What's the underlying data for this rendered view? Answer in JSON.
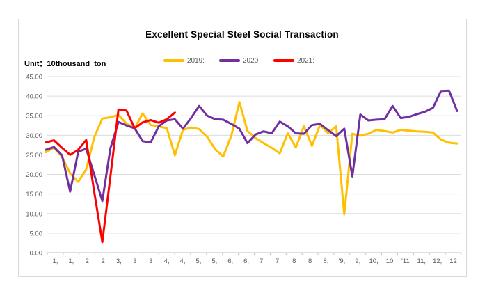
{
  "title": "Excellent Special Steel Social Transaction",
  "unit_label": "Unit：10thousand  ton",
  "legend": {
    "items": [
      {
        "label": "2019:",
        "color": "#FFC000"
      },
      {
        "label": "2020",
        "color": "#7030A0"
      },
      {
        "label": "2021:",
        "color": "#FF0000"
      }
    ]
  },
  "colors": {
    "background": "#FFFFFF",
    "frame": "#D9D9D9",
    "gridline": "#DCDCDC",
    "axis": "#BFBFBF",
    "axis_label": "#595959",
    "legend_text": "#595959"
  },
  "chart_data": {
    "type": "line",
    "title": "Excellent Special Steel Social Transaction",
    "unit": "10thousand ton",
    "legend_position": "top",
    "grid": "horizontal",
    "ylim": [
      0,
      45
    ],
    "y_tick_step": 5,
    "y_tick_labels": [
      "0.00",
      "5.00",
      "10.00",
      "15.00",
      "20.00",
      "25.00",
      "30.00",
      "35.00",
      "40.00",
      "45.00"
    ],
    "x_labels": [
      "1,",
      "1,",
      "2",
      "2",
      "3,",
      "3",
      "3",
      "4,",
      "4,",
      "5,",
      "5,",
      "6,",
      "6,",
      "7,",
      "7,",
      "8",
      "8",
      "8,",
      "'9,",
      "9,",
      "10,",
      "10",
      "'11",
      "11,",
      "12,",
      "12"
    ],
    "points_per_label": 2,
    "n_points": 52,
    "series": [
      {
        "name": "2019:",
        "color": "#FFC000",
        "values": [
          25.7,
          26.8,
          24.5,
          20.3,
          18.1,
          21.3,
          29.5,
          34.3,
          34.6,
          35.2,
          33.0,
          31.8,
          35.6,
          32.6,
          32.3,
          31.8,
          24.9,
          31.4,
          32.0,
          31.6,
          29.6,
          26.4,
          24.6,
          29.9,
          38.5,
          31.1,
          29.3,
          28.0,
          26.8,
          25.4,
          30.5,
          26.9,
          32.3,
          27.3,
          32.7,
          30.5,
          32.3,
          9.8,
          30.4,
          29.9,
          30.4,
          31.4,
          31.1,
          30.7,
          31.4,
          31.2,
          31.0,
          30.9,
          30.7,
          28.9,
          28.1,
          27.9
        ]
      },
      {
        "name": "2020",
        "color": "#7030A0",
        "values": [
          26.3,
          27.0,
          24.9,
          15.6,
          25.8,
          26.6,
          19.9,
          13.2,
          26.7,
          33.4,
          32.5,
          31.8,
          28.5,
          28.2,
          32.3,
          33.8,
          34.1,
          31.7,
          34.4,
          37.5,
          35.0,
          34.1,
          34.0,
          32.9,
          31.7,
          28.0,
          30.2,
          31.0,
          30.5,
          33.5,
          32.3,
          30.5,
          30.4,
          32.6,
          32.9,
          31.3,
          29.8,
          31.7,
          19.5,
          35.3,
          33.8,
          34.0,
          34.1,
          37.5,
          34.4,
          34.7,
          35.4,
          36.0,
          37.0,
          41.3,
          41.4,
          36.2
        ]
      },
      {
        "name": "2021:",
        "color": "#FF0000",
        "values": [
          28.2,
          28.7,
          26.8,
          25.0,
          26.3,
          28.8,
          15.5,
          2.7,
          19.5,
          36.6,
          36.3,
          31.8,
          33.3,
          33.9,
          33.2,
          34.1,
          35.8
        ]
      }
    ]
  }
}
